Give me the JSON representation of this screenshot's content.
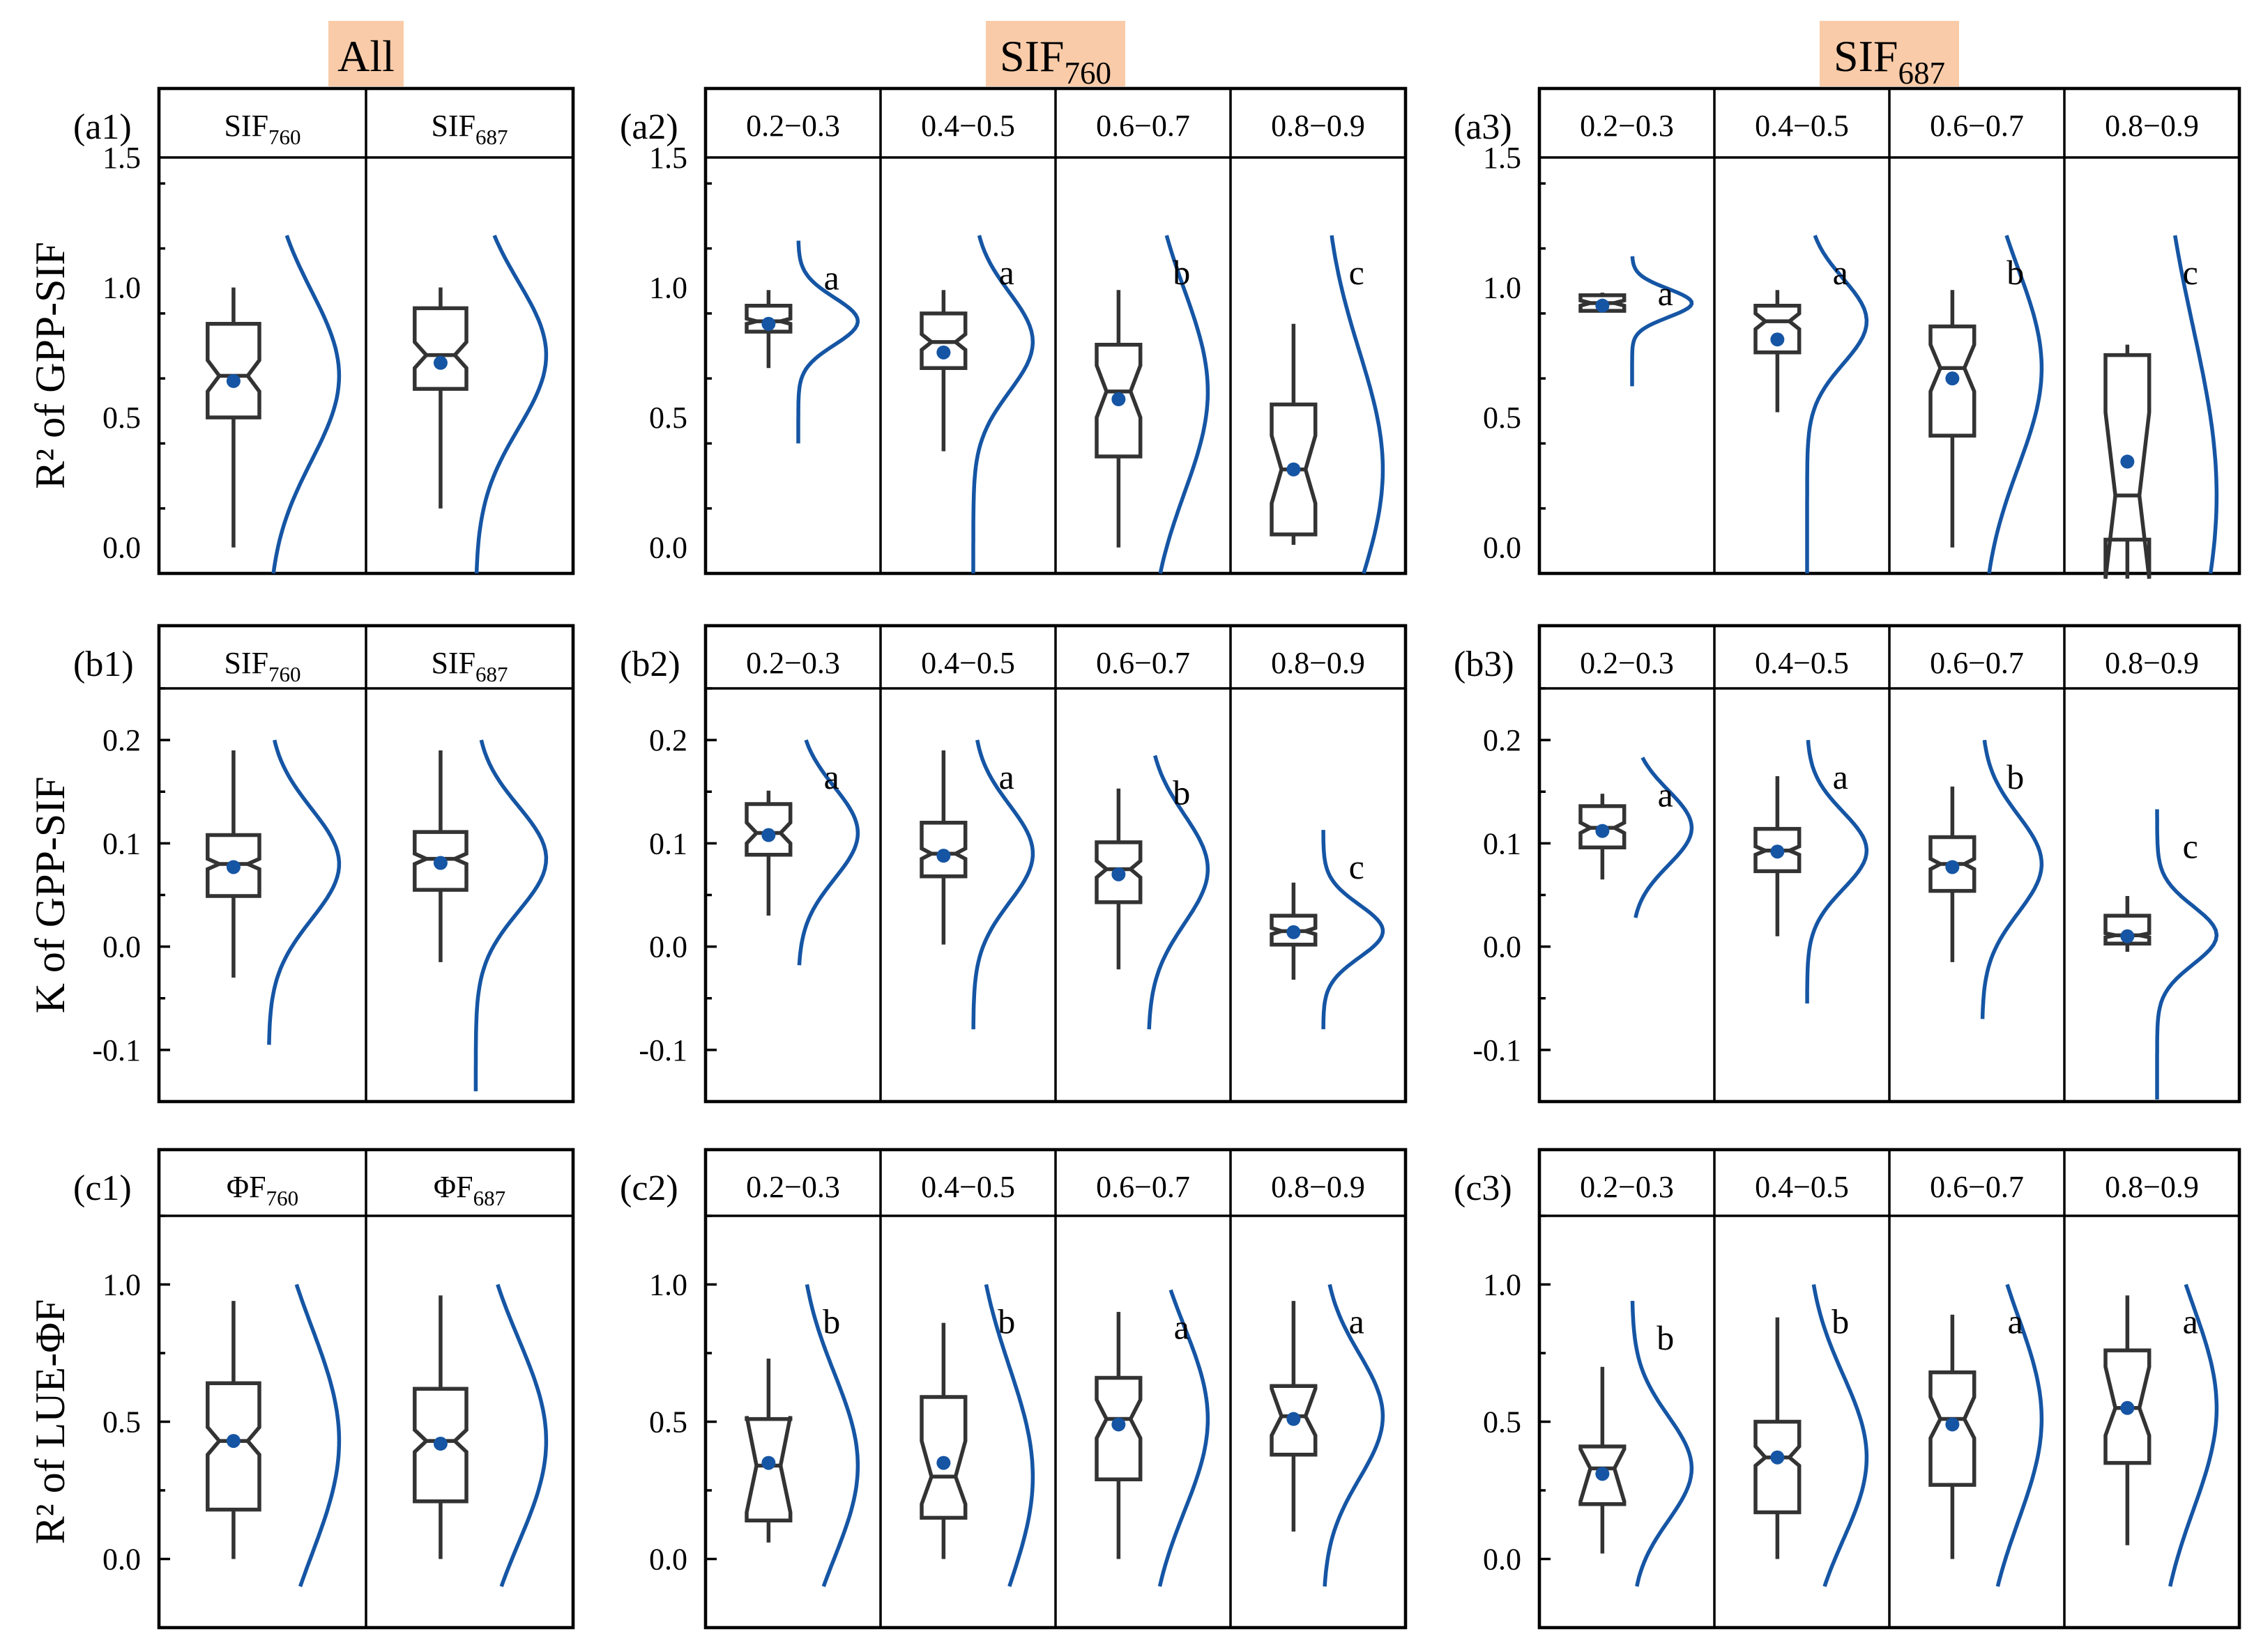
{
  "column_headers": [
    "All",
    "SIF760",
    "SIF687"
  ],
  "row_ylabels": [
    "R² of GPP-SIF",
    "K of GPP-SIF",
    "R² of LUE-ΦF"
  ],
  "colors": {
    "kde": "#1555a4",
    "mean": "#1555a4",
    "box": "#333333",
    "header_highlight": "#f9cba8"
  },
  "chart_data": [
    {
      "id": "a1",
      "panel_label": "(a1)",
      "type": "box",
      "ylabel": "R² of GPP-SIF",
      "ylim": [
        -0.1,
        1.5
      ],
      "yticks": [
        0.0,
        0.5,
        1.0,
        1.5
      ],
      "yticklabels": [
        "0.0",
        "0.5",
        "1.0",
        "1.5"
      ],
      "categories": [
        "SIF760",
        "SIF687"
      ],
      "boxes": [
        {
          "whislo": 0.0,
          "q1": 0.5,
          "med": 0.66,
          "q3": 0.86,
          "whishi": 1.0,
          "mean": 0.64,
          "notch_lo": 0.6,
          "notch_hi": 0.72,
          "kde_range": [
            -0.1,
            1.2
          ],
          "letter": ""
        },
        {
          "whislo": 0.15,
          "q1": 0.61,
          "med": 0.74,
          "q3": 0.92,
          "whishi": 1.0,
          "mean": 0.71,
          "notch_lo": 0.69,
          "notch_hi": 0.79,
          "kde_range": [
            -0.1,
            1.2
          ],
          "letter": ""
        }
      ]
    },
    {
      "id": "a2",
      "panel_label": "(a2)",
      "type": "box",
      "ylim": [
        -0.1,
        1.5
      ],
      "yticks": [
        0.0,
        0.5,
        1.0,
        1.5
      ],
      "yticklabels": [
        "0.0",
        "0.5",
        "1.0",
        "1.5"
      ],
      "categories": [
        "0.2−0.3",
        "0.4−0.5",
        "0.6−0.7",
        "0.8−0.9"
      ],
      "boxes": [
        {
          "whislo": 0.69,
          "q1": 0.83,
          "med": 0.87,
          "q3": 0.93,
          "whishi": 0.99,
          "mean": 0.86,
          "notch_lo": 0.86,
          "notch_hi": 0.88,
          "kde_range": [
            0.4,
            1.18
          ],
          "letter": "a"
        },
        {
          "whislo": 0.37,
          "q1": 0.69,
          "med": 0.79,
          "q3": 0.9,
          "whishi": 0.99,
          "mean": 0.75,
          "notch_lo": 0.76,
          "notch_hi": 0.82,
          "kde_range": [
            -0.1,
            1.2
          ],
          "letter": "a"
        },
        {
          "whislo": 0.0,
          "q1": 0.35,
          "med": 0.6,
          "q3": 0.78,
          "whishi": 0.99,
          "mean": 0.57,
          "notch_lo": 0.5,
          "notch_hi": 0.7,
          "kde_range": [
            -0.1,
            1.2
          ],
          "letter": "b"
        },
        {
          "whislo": 0.01,
          "q1": 0.05,
          "med": 0.3,
          "q3": 0.55,
          "whishi": 0.86,
          "mean": 0.3,
          "notch_lo": 0.17,
          "notch_hi": 0.43,
          "kde_range": [
            -0.1,
            1.2
          ],
          "letter": "c"
        }
      ]
    },
    {
      "id": "a3",
      "panel_label": "(a3)",
      "type": "box",
      "ylim": [
        -0.1,
        1.5
      ],
      "yticks": [
        0.0,
        0.5,
        1.0,
        1.5
      ],
      "yticklabels": [
        "0.0",
        "0.5",
        "1.0",
        "1.5"
      ],
      "categories": [
        "0.2−0.3",
        "0.4−0.5",
        "0.6−0.7",
        "0.8−0.9"
      ],
      "boxes": [
        {
          "whislo": 0.91,
          "q1": 0.91,
          "med": 0.94,
          "q3": 0.97,
          "whishi": 0.98,
          "mean": 0.93,
          "notch_lo": 0.93,
          "notch_hi": 0.95,
          "kde_range": [
            0.62,
            1.12
          ],
          "letter": "a"
        },
        {
          "whislo": 0.52,
          "q1": 0.75,
          "med": 0.87,
          "q3": 0.93,
          "whishi": 0.99,
          "mean": 0.8,
          "notch_lo": 0.84,
          "notch_hi": 0.9,
          "kde_range": [
            -0.1,
            1.2
          ],
          "letter": "a"
        },
        {
          "whislo": 0.0,
          "q1": 0.43,
          "med": 0.69,
          "q3": 0.85,
          "whishi": 0.99,
          "mean": 0.65,
          "notch_lo": 0.6,
          "notch_hi": 0.78,
          "kde_range": [
            -0.1,
            1.2
          ],
          "letter": "b"
        },
        {
          "whislo": -0.12,
          "q1": 0.03,
          "med": 0.2,
          "q3": 0.74,
          "whishi": 0.78,
          "mean": 0.33,
          "notch_lo": -0.12,
          "notch_hi": 0.52,
          "kde_range": [
            -0.1,
            1.2
          ],
          "letter": "c"
        }
      ]
    },
    {
      "id": "b1",
      "panel_label": "(b1)",
      "type": "box",
      "ylabel": "K of GPP-SIF",
      "ylim": [
        -0.15,
        0.25
      ],
      "yticks": [
        -0.1,
        0.0,
        0.1,
        0.2
      ],
      "yticklabels": [
        "-0.1",
        "0.0",
        "0.1",
        "0.2"
      ],
      "categories": [
        "SIF760",
        "SIF687"
      ],
      "boxes": [
        {
          "whislo": -0.03,
          "q1": 0.049,
          "med": 0.08,
          "q3": 0.108,
          "whishi": 0.19,
          "mean": 0.077,
          "notch_lo": 0.075,
          "notch_hi": 0.085,
          "kde_range": [
            -0.095,
            0.2
          ],
          "letter": ""
        },
        {
          "whislo": -0.015,
          "q1": 0.055,
          "med": 0.085,
          "q3": 0.111,
          "whishi": 0.19,
          "mean": 0.081,
          "notch_lo": 0.08,
          "notch_hi": 0.09,
          "kde_range": [
            -0.14,
            0.2
          ],
          "letter": ""
        }
      ]
    },
    {
      "id": "b2",
      "panel_label": "(b2)",
      "type": "box",
      "ylim": [
        -0.15,
        0.25
      ],
      "yticks": [
        -0.1,
        0.0,
        0.1,
        0.2
      ],
      "yticklabels": [
        "-0.1",
        "0.0",
        "0.1",
        "0.2"
      ],
      "categories": [
        "0.2−0.3",
        "0.4−0.5",
        "0.6−0.7",
        "0.8−0.9"
      ],
      "boxes": [
        {
          "whislo": 0.03,
          "q1": 0.089,
          "med": 0.11,
          "q3": 0.138,
          "whishi": 0.151,
          "mean": 0.108,
          "notch_lo": 0.1,
          "notch_hi": 0.12,
          "kde_range": [
            -0.018,
            0.2
          ],
          "letter": "a"
        },
        {
          "whislo": 0.002,
          "q1": 0.068,
          "med": 0.09,
          "q3": 0.12,
          "whishi": 0.19,
          "mean": 0.088,
          "notch_lo": 0.085,
          "notch_hi": 0.095,
          "kde_range": [
            -0.08,
            0.2
          ],
          "letter": "a"
        },
        {
          "whislo": -0.022,
          "q1": 0.043,
          "med": 0.075,
          "q3": 0.101,
          "whishi": 0.153,
          "mean": 0.07,
          "notch_lo": 0.067,
          "notch_hi": 0.083,
          "kde_range": [
            -0.08,
            0.185
          ],
          "letter": "b"
        },
        {
          "whislo": -0.032,
          "q1": 0.002,
          "med": 0.015,
          "q3": 0.03,
          "whishi": 0.062,
          "mean": 0.014,
          "notch_lo": 0.012,
          "notch_hi": 0.018,
          "kde_range": [
            -0.08,
            0.113
          ],
          "letter": "c"
        }
      ]
    },
    {
      "id": "b3",
      "panel_label": "(b3)",
      "type": "box",
      "ylim": [
        -0.15,
        0.25
      ],
      "yticks": [
        -0.1,
        0.0,
        0.1,
        0.2
      ],
      "yticklabels": [
        "-0.1",
        "0.0",
        "0.1",
        "0.2"
      ],
      "categories": [
        "0.2−0.3",
        "0.4−0.5",
        "0.6−0.7",
        "0.8−0.9"
      ],
      "boxes": [
        {
          "whislo": 0.065,
          "q1": 0.096,
          "med": 0.115,
          "q3": 0.136,
          "whishi": 0.148,
          "mean": 0.112,
          "notch_lo": 0.11,
          "notch_hi": 0.12,
          "kde_range": [
            0.028,
            0.183
          ],
          "letter": "a"
        },
        {
          "whislo": 0.01,
          "q1": 0.073,
          "med": 0.093,
          "q3": 0.114,
          "whishi": 0.165,
          "mean": 0.092,
          "notch_lo": 0.089,
          "notch_hi": 0.097,
          "kde_range": [
            -0.055,
            0.2
          ],
          "letter": "a"
        },
        {
          "whislo": -0.015,
          "q1": 0.054,
          "med": 0.08,
          "q3": 0.106,
          "whishi": 0.155,
          "mean": 0.077,
          "notch_lo": 0.075,
          "notch_hi": 0.085,
          "kde_range": [
            -0.07,
            0.2
          ],
          "letter": "b"
        },
        {
          "whislo": -0.005,
          "q1": 0.003,
          "med": 0.011,
          "q3": 0.03,
          "whishi": 0.049,
          "mean": 0.01,
          "notch_lo": 0.009,
          "notch_hi": 0.013,
          "kde_range": [
            -0.148,
            0.133
          ],
          "letter": "c"
        }
      ]
    },
    {
      "id": "c1",
      "panel_label": "(c1)",
      "type": "box",
      "ylabel": "R² of LUE-ΦF",
      "ylim": [
        -0.25,
        1.25
      ],
      "yticks": [
        0.0,
        0.5,
        1.0
      ],
      "yticklabels": [
        "0.0",
        "0.5",
        "1.0"
      ],
      "categories": [
        "ΦF760",
        "ΦF687"
      ],
      "boxes": [
        {
          "whislo": 0.0,
          "q1": 0.18,
          "med": 0.43,
          "q3": 0.64,
          "whishi": 0.94,
          "mean": 0.43,
          "notch_lo": 0.38,
          "notch_hi": 0.48,
          "kde_range": [
            -0.1,
            1.0
          ],
          "letter": ""
        },
        {
          "whislo": 0.0,
          "q1": 0.21,
          "med": 0.43,
          "q3": 0.62,
          "whishi": 0.96,
          "mean": 0.42,
          "notch_lo": 0.39,
          "notch_hi": 0.47,
          "kde_range": [
            -0.1,
            1.0
          ],
          "letter": ""
        }
      ]
    },
    {
      "id": "c2",
      "panel_label": "(c2)",
      "type": "box",
      "ylim": [
        -0.25,
        1.25
      ],
      "yticks": [
        0.0,
        0.5,
        1.0
      ],
      "yticklabels": [
        "0.0",
        "0.5",
        "1.0"
      ],
      "categories": [
        "0.2−0.3",
        "0.4−0.5",
        "0.6−0.7",
        "0.8−0.9"
      ],
      "boxes": [
        {
          "whislo": 0.06,
          "q1": 0.14,
          "med": 0.34,
          "q3": 0.51,
          "whishi": 0.73,
          "mean": 0.35,
          "notch_lo": 0.17,
          "notch_hi": 0.52,
          "kde_range": [
            -0.1,
            1.0
          ],
          "letter": "b"
        },
        {
          "whislo": 0.0,
          "q1": 0.15,
          "med": 0.3,
          "q3": 0.59,
          "whishi": 0.86,
          "mean": 0.35,
          "notch_lo": 0.2,
          "notch_hi": 0.43,
          "kde_range": [
            -0.1,
            1.0
          ],
          "letter": "b"
        },
        {
          "whislo": 0.0,
          "q1": 0.29,
          "med": 0.51,
          "q3": 0.66,
          "whishi": 0.9,
          "mean": 0.49,
          "notch_lo": 0.44,
          "notch_hi": 0.58,
          "kde_range": [
            -0.1,
            0.98
          ],
          "letter": "a"
        },
        {
          "whislo": 0.1,
          "q1": 0.38,
          "med": 0.52,
          "q3": 0.63,
          "whishi": 0.94,
          "mean": 0.51,
          "notch_lo": 0.45,
          "notch_hi": 0.62,
          "kde_range": [
            -0.1,
            1.0
          ],
          "letter": "a"
        }
      ]
    },
    {
      "id": "c3",
      "panel_label": "(c3)",
      "type": "box",
      "ylim": [
        -0.25,
        1.25
      ],
      "yticks": [
        0.0,
        0.5,
        1.0
      ],
      "yticklabels": [
        "0.0",
        "0.5",
        "1.0"
      ],
      "categories": [
        "0.2−0.3",
        "0.4−0.5",
        "0.6−0.7",
        "0.8−0.9"
      ],
      "boxes": [
        {
          "whislo": 0.02,
          "q1": 0.2,
          "med": 0.33,
          "q3": 0.41,
          "whishi": 0.7,
          "mean": 0.31,
          "notch_lo": 0.21,
          "notch_hi": 0.4,
          "kde_range": [
            -0.1,
            0.94
          ],
          "letter": "b"
        },
        {
          "whislo": 0.0,
          "q1": 0.17,
          "med": 0.37,
          "q3": 0.5,
          "whishi": 0.88,
          "mean": 0.37,
          "notch_lo": 0.34,
          "notch_hi": 0.41,
          "kde_range": [
            -0.1,
            1.0
          ],
          "letter": "b"
        },
        {
          "whislo": 0.0,
          "q1": 0.27,
          "med": 0.51,
          "q3": 0.68,
          "whishi": 0.89,
          "mean": 0.49,
          "notch_lo": 0.44,
          "notch_hi": 0.59,
          "kde_range": [
            -0.1,
            1.0
          ],
          "letter": "a"
        },
        {
          "whislo": 0.05,
          "q1": 0.35,
          "med": 0.55,
          "q3": 0.76,
          "whishi": 0.96,
          "mean": 0.55,
          "notch_lo": 0.45,
          "notch_hi": 0.7,
          "kde_range": [
            -0.1,
            1.0
          ],
          "letter": "a"
        }
      ]
    }
  ]
}
